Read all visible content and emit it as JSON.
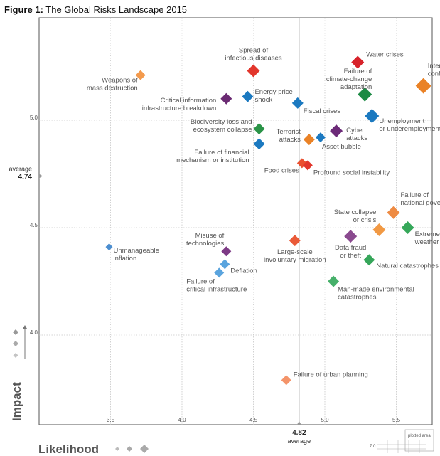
{
  "figure": {
    "label": "Figure 1:",
    "title": "The Global Risks Landscape 2015"
  },
  "chart_data": {
    "type": "scatter",
    "title": "The Global Risks Landscape 2015",
    "xlabel": "Likelihood",
    "ylabel": "Impact",
    "xlim": [
      3.0,
      6.0
    ],
    "ylim": [
      3.6,
      5.5
    ],
    "x_ticks": [
      "3.5",
      "4.0",
      "4.5",
      "5.0",
      "5.5"
    ],
    "y_ticks": [
      "4.0",
      "4.5",
      "5.0"
    ],
    "averages": {
      "likelihood": "4.82",
      "impact": "4.74",
      "label": "average"
    },
    "grid": true,
    "legend_mini": {
      "label": "plotted area",
      "value": "7.0"
    },
    "colors": {
      "economic": "#1a78c2",
      "environmental": "#2e9e4b",
      "geopolitical": "#ee7a2a",
      "societal": "#e0342a",
      "technological": "#6e2a78"
    },
    "points": [
      {
        "name": "Weapons of mass destruction",
        "lines": [
          "Weapons of",
          "mass destruction"
        ],
        "x": 3.71,
        "y": 5.21,
        "color": "#f39a4d",
        "size": 7,
        "anchor": "end",
        "lx": -4,
        "ly": 10
      },
      {
        "name": "Spread of infectious diseases",
        "lines": [
          "Spread of",
          "infectious diseases"
        ],
        "x": 4.5,
        "y": 5.23,
        "color": "#e2362c",
        "size": 9,
        "anchor": "middle",
        "lx": 0,
        "ly": -26
      },
      {
        "name": "Water crises",
        "lines": [
          "Water crises"
        ],
        "x": 5.23,
        "y": 5.27,
        "color": "#d7222a",
        "size": 9,
        "anchor": "start",
        "lx": 12,
        "ly": -8
      },
      {
        "name": "Interstate conflict",
        "lines": [
          "Interstate",
          "conflict"
        ],
        "x": 5.69,
        "y": 5.16,
        "color": "#ea8226",
        "size": 11,
        "anchor": "start",
        "lx": 6,
        "ly": -25
      },
      {
        "name": "Failure of climate-change adaptation",
        "lines": [
          "Failure of",
          "climate-change",
          "adaptation"
        ],
        "x": 5.28,
        "y": 5.12,
        "color": "#1c8a44",
        "size": 10,
        "anchor": "end",
        "lx": 10,
        "ly": -30
      },
      {
        "name": "Critical information infrastructure breakdown",
        "lines": [
          "Critical information",
          "infrastructure breakdown"
        ],
        "x": 4.31,
        "y": 5.1,
        "color": "#6b2b73",
        "size": 8,
        "anchor": "end",
        "lx": -14,
        "ly": 5
      },
      {
        "name": "Energy price shock",
        "lines": [
          "Energy price",
          "shock"
        ],
        "x": 4.46,
        "y": 5.11,
        "color": "#1b79c0",
        "size": 8,
        "anchor": "start",
        "lx": 10,
        "ly": -4
      },
      {
        "name": "Fiscal crises",
        "lines": [
          "Fiscal crises"
        ],
        "x": 4.81,
        "y": 5.08,
        "color": "#1b79c0",
        "size": 8,
        "anchor": "start",
        "lx": 8,
        "ly": 14
      },
      {
        "name": "Unemployment or underemployment",
        "lines": [
          "Unemployment",
          "or underemployment"
        ],
        "x": 5.33,
        "y": 5.02,
        "color": "#1b79c0",
        "size": 10,
        "anchor": "start",
        "lx": 10,
        "ly": 10
      },
      {
        "name": "Biodiversity loss and ecosystem collapse",
        "lines": [
          "Biodiversity loss and",
          "ecosystem collapse"
        ],
        "x": 4.54,
        "y": 4.96,
        "color": "#2a9347",
        "size": 8,
        "anchor": "end",
        "lx": -10,
        "ly": -7
      },
      {
        "name": "Cyber attacks",
        "lines": [
          "Cyber",
          "attacks"
        ],
        "x": 5.08,
        "y": 4.95,
        "color": "#6c2a78",
        "size": 9,
        "anchor": "start",
        "lx": 14,
        "ly": 2
      },
      {
        "name": "Terrorist attacks",
        "lines": [
          "Terrorist",
          "attacks"
        ],
        "x": 4.89,
        "y": 4.91,
        "color": "#ea8226",
        "size": 8,
        "anchor": "end",
        "lx": -12,
        "ly": -8
      },
      {
        "name": "Asset bubble",
        "lines": [
          "Asset bubble"
        ],
        "x": 4.97,
        "y": 4.92,
        "color": "#1b79c0",
        "size": 7,
        "anchor": "start",
        "lx": 2,
        "ly": 16
      },
      {
        "name": "Failure of financial mechanism or institution",
        "lines": [
          "Failure of financial",
          "mechanism or institution"
        ],
        "x": 4.54,
        "y": 4.89,
        "color": "#1b79c0",
        "size": 8,
        "anchor": "end",
        "lx": -14,
        "ly": 15
      },
      {
        "name": "Food crises",
        "lines": [
          "Food crises"
        ],
        "x": 4.84,
        "y": 4.8,
        "color": "#ea5030",
        "size": 7,
        "anchor": "end",
        "lx": -4,
        "ly": 13
      },
      {
        "name": "Profound social instability",
        "lines": [
          "Profound social instability"
        ],
        "x": 4.88,
        "y": 4.79,
        "color": "#e2362c",
        "size": 7,
        "anchor": "start",
        "lx": 8,
        "ly": 13
      },
      {
        "name": "Failure of national governance",
        "lines": [
          "Failure of",
          "national governance"
        ],
        "x": 5.48,
        "y": 4.57,
        "color": "#ee8b43",
        "size": 9,
        "anchor": "start",
        "lx": 10,
        "ly": -22
      },
      {
        "name": "State collapse or crisis",
        "lines": [
          "State collapse",
          "or crisis"
        ],
        "x": 5.38,
        "y": 4.49,
        "color": "#f19944",
        "size": 9,
        "anchor": "end",
        "lx": -4,
        "ly": -22
      },
      {
        "name": "Extreme weather events",
        "lines": [
          "Extreme",
          "weather events"
        ],
        "x": 5.58,
        "y": 4.5,
        "color": "#36a85a",
        "size": 9,
        "anchor": "start",
        "lx": 10,
        "ly": 12
      },
      {
        "name": "Data fraud or theft",
        "lines": [
          "Data fraud",
          "or theft"
        ],
        "x": 5.18,
        "y": 4.46,
        "color": "#8a4a8f",
        "size": 9,
        "anchor": "middle",
        "lx": 0,
        "ly": 19
      },
      {
        "name": "Large-scale involuntary migration",
        "lines": [
          "Large-scale",
          "involuntary migration"
        ],
        "x": 4.79,
        "y": 4.44,
        "color": "#ea5a38",
        "size": 8,
        "anchor": "middle",
        "lx": 0,
        "ly": 19
      },
      {
        "name": "Misuse of technologies",
        "lines": [
          "Misuse of",
          "technologies"
        ],
        "x": 4.31,
        "y": 4.39,
        "color": "#7d3a85",
        "size": 7,
        "anchor": "end",
        "lx": -3,
        "ly": -19
      },
      {
        "name": "Natural catastrophes",
        "lines": [
          "Natural catastrophes"
        ],
        "x": 5.31,
        "y": 4.35,
        "color": "#36a65a",
        "size": 8,
        "anchor": "start",
        "lx": 10,
        "ly": 11
      },
      {
        "name": "Unmanageable inflation",
        "lines": [
          "Unmanageable",
          "inflation"
        ],
        "x": 3.49,
        "y": 4.41,
        "color": "#4c8ed0",
        "size": 5,
        "anchor": "start",
        "lx": 6,
        "ly": 8
      },
      {
        "name": "Deflation",
        "lines": [
          "Deflation"
        ],
        "x": 4.3,
        "y": 4.33,
        "color": "#5aa4de",
        "size": 7,
        "anchor": "start",
        "lx": 8,
        "ly": 12
      },
      {
        "name": "Failure of critical infrastructure",
        "lines": [
          "Failure of",
          "critical infrastructure"
        ],
        "x": 4.26,
        "y": 4.29,
        "color": "#5aa4de",
        "size": 7,
        "anchor": "start",
        "lx": -46,
        "ly": 15
      },
      {
        "name": "Man-made environmental catastrophes",
        "lines": [
          "Man-made environmental",
          "catastrophes"
        ],
        "x": 5.06,
        "y": 4.25,
        "color": "#46b06a",
        "size": 8,
        "anchor": "start",
        "lx": 6,
        "ly": 14
      },
      {
        "name": "Failure of urban planning",
        "lines": [
          "Failure of urban planning"
        ],
        "x": 4.73,
        "y": 3.79,
        "color": "#f4946a",
        "size": 7,
        "anchor": "start",
        "lx": 10,
        "ly": -5
      }
    ]
  }
}
